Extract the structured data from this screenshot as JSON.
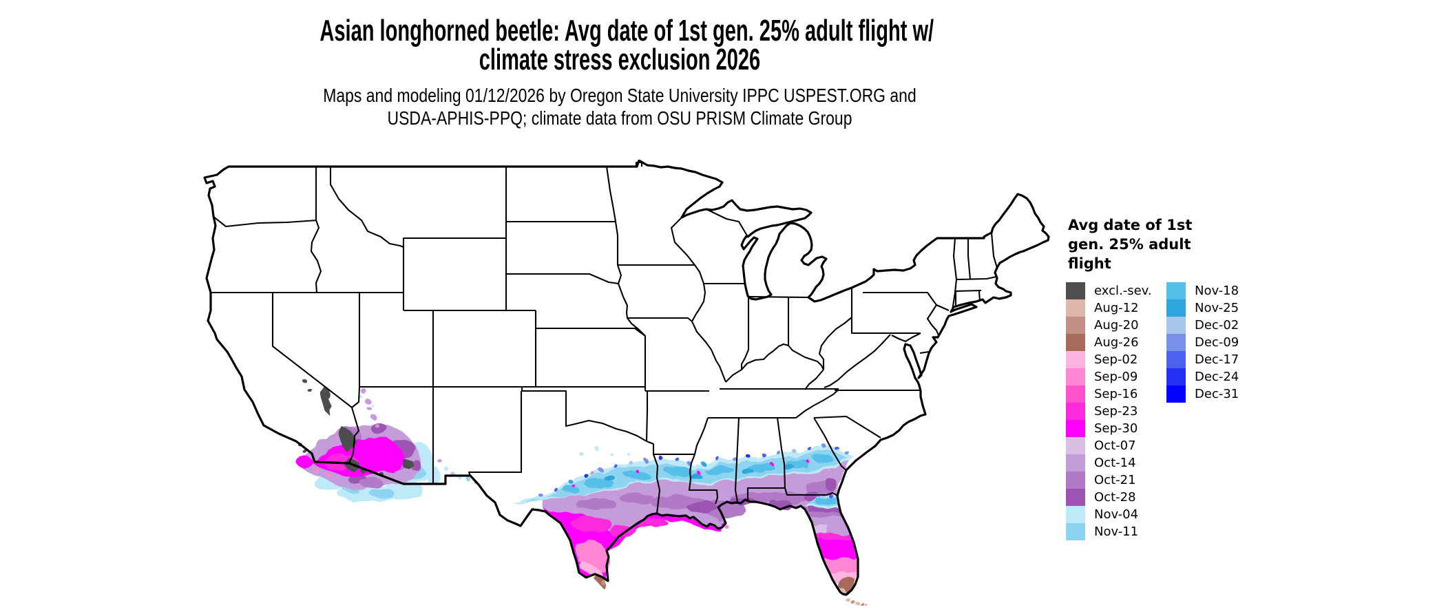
{
  "title": {
    "line1": "Asian longhorned beetle: Avg date of 1st gen. 25% adult flight w/",
    "line2": "climate stress exclusion 2026"
  },
  "subtitle": {
    "line1": "Maps and modeling 01/12/2026 by Oregon State University IPPC USPEST.ORG and",
    "line2": "USDA-APHIS-PPQ; climate data from OSU PRISM Climate Group"
  },
  "legend": {
    "title_lines": [
      "Avg date of 1st",
      "gen. 25% adult",
      "flight"
    ],
    "column1": [
      {
        "label": "excl.-sev.",
        "color": "#4E4E4E"
      },
      {
        "label": "Aug-12",
        "color": "#DFB8AB"
      },
      {
        "label": "Aug-20",
        "color": "#C29084"
      },
      {
        "label": "Aug-26",
        "color": "#A76B59"
      },
      {
        "label": "Sep-02",
        "color": "#FFB3DE"
      },
      {
        "label": "Sep-09",
        "color": "#FF85D5"
      },
      {
        "label": "Sep-16",
        "color": "#FF52CC"
      },
      {
        "label": "Sep-23",
        "color": "#FD2BDD"
      },
      {
        "label": "Sep-30",
        "color": "#FF00FF"
      },
      {
        "label": "Oct-07",
        "color": "#D9BFE6"
      },
      {
        "label": "Oct-14",
        "color": "#C49CD9"
      },
      {
        "label": "Oct-21",
        "color": "#B279C6"
      },
      {
        "label": "Oct-28",
        "color": "#9C54B2"
      },
      {
        "label": "Nov-04",
        "color": "#BEE9F8"
      },
      {
        "label": "Nov-11",
        "color": "#8ED3EF"
      }
    ],
    "column2": [
      {
        "label": "Nov-18",
        "color": "#55BEE9"
      },
      {
        "label": "Nov-25",
        "color": "#2EA6DD"
      },
      {
        "label": "Dec-02",
        "color": "#A8C4E8"
      },
      {
        "label": "Dec-09",
        "color": "#7792E8"
      },
      {
        "label": "Dec-17",
        "color": "#4C62EE"
      },
      {
        "label": "Dec-24",
        "color": "#2531F2"
      },
      {
        "label": "Dec-31",
        "color": "#0103FE"
      }
    ]
  },
  "map": {
    "outline_color": "#000000",
    "land_color": "#FFFFFF",
    "colored_areas": [
      "southern-arizona-southeast-california",
      "south-texas",
      "gulf-coast-band",
      "florida-peninsula",
      "florida-keys"
    ]
  }
}
